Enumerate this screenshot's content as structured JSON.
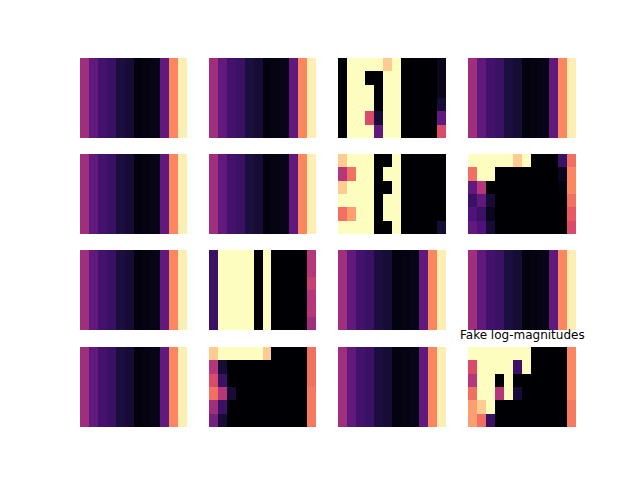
{
  "chart_data": {
    "type": "heatmap",
    "title": "Fake log-magnitudes",
    "color": "magma",
    "zlim": [
      0,
      1
    ],
    "tick_labels": false,
    "panels": [
      [
        [
          0.45,
          0.3,
          0.22,
          0.2,
          0.12,
          0.1,
          0.02,
          0.03,
          0.04,
          0.3,
          0.75,
          0.97
        ],
        [
          0.45,
          0.3,
          0.22,
          0.2,
          0.12,
          0.1,
          0.02,
          0.03,
          0.04,
          0.3,
          0.75,
          0.97
        ],
        [
          0.45,
          0.3,
          0.22,
          0.2,
          0.12,
          0.1,
          0.02,
          0.03,
          0.04,
          0.3,
          0.75,
          0.97
        ],
        [
          0.45,
          0.3,
          0.22,
          0.2,
          0.12,
          0.1,
          0.02,
          0.03,
          0.04,
          0.3,
          0.75,
          0.97
        ],
        [
          0.45,
          0.3,
          0.22,
          0.2,
          0.12,
          0.1,
          0.02,
          0.03,
          0.04,
          0.3,
          0.75,
          0.97
        ],
        [
          0.45,
          0.3,
          0.22,
          0.2,
          0.12,
          0.1,
          0.02,
          0.03,
          0.04,
          0.3,
          0.75,
          0.97
        ]
      ],
      [
        [
          0.45,
          0.3,
          0.22,
          0.2,
          0.12,
          0.1,
          0.02,
          0.03,
          0.04,
          0.3,
          0.75,
          0.97
        ],
        [
          0.45,
          0.3,
          0.22,
          0.2,
          0.12,
          0.1,
          0.02,
          0.03,
          0.04,
          0.3,
          0.75,
          0.97
        ],
        [
          0.45,
          0.3,
          0.22,
          0.2,
          0.12,
          0.1,
          0.02,
          0.03,
          0.04,
          0.3,
          0.75,
          0.97
        ],
        [
          0.45,
          0.3,
          0.22,
          0.2,
          0.12,
          0.1,
          0.02,
          0.03,
          0.04,
          0.3,
          0.75,
          0.97
        ],
        [
          0.45,
          0.3,
          0.22,
          0.2,
          0.12,
          0.1,
          0.02,
          0.03,
          0.04,
          0.3,
          0.75,
          0.97
        ],
        [
          0.45,
          0.3,
          0.22,
          0.2,
          0.12,
          0.1,
          0.02,
          0.03,
          0.04,
          0.3,
          0.75,
          0.97
        ]
      ],
      [
        [
          0,
          1,
          1,
          1,
          1,
          0.9,
          1,
          0,
          0,
          0,
          0,
          0.05
        ],
        [
          0,
          1,
          1,
          0,
          0,
          1,
          1,
          0,
          0,
          0,
          0,
          0.05
        ],
        [
          0,
          1,
          1,
          1,
          0,
          1,
          1,
          0,
          0,
          0,
          0,
          0.05
        ],
        [
          0,
          1,
          1,
          1,
          0,
          1,
          1,
          0,
          0,
          0,
          0,
          0.1
        ],
        [
          0,
          1,
          1,
          0.6,
          0.1,
          1,
          1,
          0,
          0,
          0,
          0,
          0.3
        ],
        [
          0,
          1,
          1,
          1,
          0.3,
          1,
          1,
          0,
          0,
          0,
          0,
          0.6
        ]
      ],
      [
        [
          0.45,
          0.3,
          0.22,
          0.2,
          0.12,
          0.1,
          0.02,
          0.03,
          0.04,
          0.3,
          0.75,
          0.97
        ],
        [
          0.45,
          0.3,
          0.22,
          0.2,
          0.12,
          0.1,
          0.02,
          0.03,
          0.04,
          0.3,
          0.75,
          0.97
        ],
        [
          0.45,
          0.3,
          0.22,
          0.2,
          0.12,
          0.1,
          0.02,
          0.03,
          0.04,
          0.3,
          0.75,
          0.97
        ],
        [
          0.45,
          0.3,
          0.22,
          0.2,
          0.12,
          0.1,
          0.02,
          0.03,
          0.04,
          0.3,
          0.75,
          0.97
        ],
        [
          0.45,
          0.3,
          0.22,
          0.2,
          0.12,
          0.1,
          0.02,
          0.03,
          0.04,
          0.3,
          0.75,
          0.97
        ],
        [
          0.45,
          0.3,
          0.22,
          0.2,
          0.12,
          0.1,
          0.02,
          0.03,
          0.04,
          0.3,
          0.75,
          0.97
        ]
      ],
      [
        [
          0.45,
          0.3,
          0.22,
          0.2,
          0.12,
          0.1,
          0.02,
          0.03,
          0.04,
          0.3,
          0.75,
          0.97
        ],
        [
          0.45,
          0.3,
          0.22,
          0.2,
          0.12,
          0.1,
          0.02,
          0.03,
          0.04,
          0.3,
          0.75,
          0.97
        ],
        [
          0.45,
          0.3,
          0.22,
          0.2,
          0.12,
          0.1,
          0.02,
          0.03,
          0.04,
          0.3,
          0.75,
          0.97
        ],
        [
          0.45,
          0.3,
          0.22,
          0.2,
          0.12,
          0.1,
          0.02,
          0.03,
          0.04,
          0.3,
          0.75,
          0.97
        ],
        [
          0.45,
          0.3,
          0.22,
          0.2,
          0.12,
          0.1,
          0.02,
          0.03,
          0.04,
          0.3,
          0.75,
          0.97
        ],
        [
          0.45,
          0.3,
          0.22,
          0.2,
          0.12,
          0.1,
          0.02,
          0.03,
          0.04,
          0.3,
          0.75,
          0.97
        ]
      ],
      [
        [
          0.45,
          0.3,
          0.22,
          0.2,
          0.12,
          0.1,
          0.02,
          0.03,
          0.04,
          0.3,
          0.75,
          0.97
        ],
        [
          0.45,
          0.3,
          0.22,
          0.2,
          0.12,
          0.1,
          0.02,
          0.03,
          0.04,
          0.3,
          0.75,
          0.97
        ],
        [
          0.45,
          0.3,
          0.22,
          0.2,
          0.12,
          0.1,
          0.02,
          0.03,
          0.04,
          0.3,
          0.75,
          0.97
        ],
        [
          0.45,
          0.3,
          0.22,
          0.2,
          0.12,
          0.1,
          0.02,
          0.03,
          0.04,
          0.3,
          0.75,
          0.97
        ],
        [
          0.45,
          0.3,
          0.22,
          0.2,
          0.12,
          0.1,
          0.02,
          0.03,
          0.04,
          0.3,
          0.75,
          0.97
        ],
        [
          0.45,
          0.3,
          0.22,
          0.2,
          0.12,
          0.1,
          0.02,
          0.03,
          0.04,
          0.3,
          0.75,
          0.97
        ]
      ],
      [
        [
          0.9,
          1,
          1,
          1,
          0,
          0,
          1,
          0,
          0,
          0,
          0,
          0
        ],
        [
          0.5,
          0.7,
          1,
          1,
          0,
          1,
          1,
          0,
          0,
          0,
          0,
          0
        ],
        [
          0.9,
          1,
          1,
          1,
          0,
          0,
          1,
          0,
          0,
          0,
          0,
          0
        ],
        [
          1,
          1,
          1,
          1,
          0,
          1,
          1,
          0,
          0,
          0,
          0,
          0
        ],
        [
          0.7,
          0.8,
          1,
          1,
          0,
          1,
          1,
          0,
          0,
          0,
          0,
          0
        ],
        [
          1,
          1,
          1,
          1,
          0,
          0,
          1,
          0,
          0,
          0,
          0,
          0.1
        ]
      ],
      [
        [
          1,
          1,
          1,
          1,
          1,
          0.9,
          1,
          0,
          0,
          0,
          0.2,
          0.7
        ],
        [
          0.7,
          1,
          1,
          0,
          0,
          0,
          0,
          0,
          0,
          0,
          0.05,
          0.75
        ],
        [
          0.3,
          0.5,
          0,
          0,
          0,
          0,
          0,
          0,
          0,
          0,
          0.02,
          0.75
        ],
        [
          0.2,
          0.3,
          0.1,
          0,
          0,
          0,
          0,
          0,
          0,
          0,
          0,
          0.7
        ],
        [
          0.25,
          0.2,
          0.05,
          0,
          0,
          0,
          0,
          0,
          0,
          0,
          0,
          0.65
        ],
        [
          0.3,
          0.25,
          0.1,
          0,
          0,
          0,
          0,
          0,
          0,
          0,
          0,
          0.6
        ]
      ],
      [
        [
          0.45,
          0.3,
          0.22,
          0.2,
          0.12,
          0.1,
          0.02,
          0.03,
          0.04,
          0.3,
          0.75,
          0.97
        ],
        [
          0.45,
          0.3,
          0.22,
          0.2,
          0.12,
          0.1,
          0.02,
          0.03,
          0.04,
          0.3,
          0.75,
          0.97
        ],
        [
          0.45,
          0.3,
          0.22,
          0.2,
          0.12,
          0.1,
          0.02,
          0.03,
          0.04,
          0.3,
          0.75,
          0.97
        ],
        [
          0.45,
          0.3,
          0.22,
          0.2,
          0.12,
          0.1,
          0.02,
          0.03,
          0.04,
          0.3,
          0.75,
          0.97
        ],
        [
          0.45,
          0.3,
          0.22,
          0.2,
          0.12,
          0.1,
          0.02,
          0.03,
          0.04,
          0.3,
          0.75,
          0.97
        ],
        [
          0.45,
          0.3,
          0.22,
          0.2,
          0.12,
          0.1,
          0.02,
          0.03,
          0.04,
          0.3,
          0.75,
          0.97
        ]
      ],
      [
        [
          0.2,
          1,
          1,
          1,
          1,
          0,
          1,
          0,
          0,
          0,
          0,
          0.5
        ],
        [
          0.2,
          1,
          1,
          1,
          1,
          0,
          1,
          0,
          0,
          0,
          0,
          0.5
        ],
        [
          0.2,
          1,
          1,
          1,
          1,
          0,
          1,
          0,
          0,
          0,
          0,
          0.55
        ],
        [
          0.2,
          1,
          1,
          1,
          1,
          0,
          1,
          0,
          0,
          0,
          0,
          0.5
        ],
        [
          0.2,
          1,
          1,
          1,
          1,
          0,
          1,
          0,
          0,
          0,
          0,
          0.5
        ],
        [
          0.2,
          1,
          1,
          1,
          1,
          0,
          1,
          0,
          0,
          0,
          0,
          0.45
        ]
      ],
      [
        [
          0.45,
          0.3,
          0.22,
          0.2,
          0.12,
          0.1,
          0.02,
          0.03,
          0.04,
          0.3,
          0.75,
          0.97
        ],
        [
          0.45,
          0.3,
          0.22,
          0.2,
          0.12,
          0.1,
          0.02,
          0.03,
          0.04,
          0.3,
          0.75,
          0.97
        ],
        [
          0.45,
          0.3,
          0.22,
          0.2,
          0.12,
          0.1,
          0.02,
          0.03,
          0.04,
          0.3,
          0.75,
          0.97
        ],
        [
          0.45,
          0.3,
          0.22,
          0.2,
          0.12,
          0.1,
          0.02,
          0.03,
          0.04,
          0.3,
          0.75,
          0.97
        ],
        [
          0.45,
          0.3,
          0.22,
          0.2,
          0.12,
          0.1,
          0.02,
          0.03,
          0.04,
          0.3,
          0.75,
          0.97
        ],
        [
          0.45,
          0.3,
          0.22,
          0.2,
          0.12,
          0.1,
          0.02,
          0.03,
          0.04,
          0.3,
          0.75,
          0.97
        ]
      ],
      [
        [
          0.45,
          0.3,
          0.22,
          0.2,
          0.12,
          0.1,
          0.02,
          0.03,
          0.04,
          0.3,
          0.75,
          0.97
        ],
        [
          0.45,
          0.3,
          0.22,
          0.2,
          0.12,
          0.1,
          0.02,
          0.03,
          0.04,
          0.3,
          0.75,
          0.97
        ],
        [
          0.45,
          0.3,
          0.22,
          0.2,
          0.12,
          0.1,
          0.02,
          0.03,
          0.04,
          0.3,
          0.75,
          0.97
        ],
        [
          0.45,
          0.3,
          0.22,
          0.2,
          0.12,
          0.1,
          0.02,
          0.03,
          0.04,
          0.3,
          0.75,
          0.97
        ],
        [
          0.45,
          0.3,
          0.22,
          0.2,
          0.12,
          0.1,
          0.02,
          0.03,
          0.04,
          0.3,
          0.75,
          0.97
        ],
        [
          0.45,
          0.3,
          0.22,
          0.2,
          0.12,
          0.1,
          0.02,
          0.03,
          0.04,
          0.3,
          0.75,
          0.97
        ]
      ],
      [
        [
          0.45,
          0.3,
          0.22,
          0.2,
          0.12,
          0.1,
          0.02,
          0.03,
          0.04,
          0.3,
          0.75,
          0.97
        ],
        [
          0.45,
          0.3,
          0.22,
          0.2,
          0.12,
          0.1,
          0.02,
          0.03,
          0.04,
          0.3,
          0.75,
          0.97
        ],
        [
          0.45,
          0.3,
          0.22,
          0.2,
          0.12,
          0.1,
          0.02,
          0.03,
          0.04,
          0.3,
          0.75,
          0.97
        ],
        [
          0.45,
          0.3,
          0.22,
          0.2,
          0.12,
          0.1,
          0.02,
          0.03,
          0.04,
          0.3,
          0.75,
          0.97
        ],
        [
          0.45,
          0.3,
          0.22,
          0.2,
          0.12,
          0.1,
          0.02,
          0.03,
          0.04,
          0.3,
          0.75,
          0.97
        ],
        [
          0.45,
          0.3,
          0.22,
          0.2,
          0.12,
          0.1,
          0.02,
          0.03,
          0.04,
          0.3,
          0.75,
          0.97
        ]
      ],
      [
        [
          0.9,
          1,
          1,
          1,
          1,
          1,
          0.9,
          0,
          0,
          0,
          0,
          0.7
        ],
        [
          0.5,
          0.1,
          0,
          0,
          0,
          0,
          0,
          0,
          0,
          0,
          0,
          0.7
        ],
        [
          0.6,
          0.2,
          0,
          0,
          0,
          0,
          0,
          0,
          0,
          0,
          0,
          0.7
        ],
        [
          0.7,
          0.5,
          0.1,
          0,
          0,
          0,
          0,
          0,
          0,
          0,
          0,
          0.72
        ],
        [
          0.45,
          0.2,
          0,
          0,
          0,
          0,
          0,
          0,
          0,
          0,
          0,
          0.72
        ],
        [
          0.35,
          0.1,
          0,
          0,
          0,
          0,
          0,
          0,
          0,
          0,
          0,
          0.72
        ]
      ],
      [
        [
          0.45,
          0.3,
          0.22,
          0.2,
          0.12,
          0.1,
          0.02,
          0.03,
          0.04,
          0.3,
          0.75,
          0.97
        ],
        [
          0.45,
          0.3,
          0.22,
          0.2,
          0.12,
          0.1,
          0.02,
          0.03,
          0.04,
          0.3,
          0.75,
          0.97
        ],
        [
          0.45,
          0.3,
          0.22,
          0.2,
          0.12,
          0.1,
          0.02,
          0.03,
          0.04,
          0.3,
          0.75,
          0.97
        ],
        [
          0.45,
          0.3,
          0.22,
          0.2,
          0.12,
          0.1,
          0.02,
          0.03,
          0.04,
          0.3,
          0.75,
          0.97
        ],
        [
          0.45,
          0.3,
          0.22,
          0.2,
          0.12,
          0.1,
          0.02,
          0.03,
          0.04,
          0.3,
          0.75,
          0.97
        ],
        [
          0.45,
          0.3,
          0.22,
          0.2,
          0.12,
          0.1,
          0.02,
          0.03,
          0.04,
          0.3,
          0.75,
          0.97
        ]
      ],
      [
        [
          1,
          1,
          1,
          1,
          1,
          1,
          1,
          0,
          0,
          0,
          0,
          0.75
        ],
        [
          0.6,
          1,
          1,
          1,
          1,
          0.2,
          1,
          0,
          0,
          0,
          0,
          0.75
        ],
        [
          0.5,
          1,
          1,
          0,
          1,
          0,
          0,
          0,
          0,
          0,
          0,
          0.75
        ],
        [
          0.7,
          1,
          1,
          0.5,
          1,
          0.1,
          0,
          0,
          0,
          0,
          0,
          0.75
        ],
        [
          0.8,
          0.9,
          1,
          0,
          0,
          0,
          0,
          0,
          0,
          0,
          0,
          0.72
        ],
        [
          0.8,
          0.7,
          0.2,
          0,
          0,
          0,
          0,
          0,
          0,
          0,
          0,
          0.72
        ]
      ]
    ]
  }
}
